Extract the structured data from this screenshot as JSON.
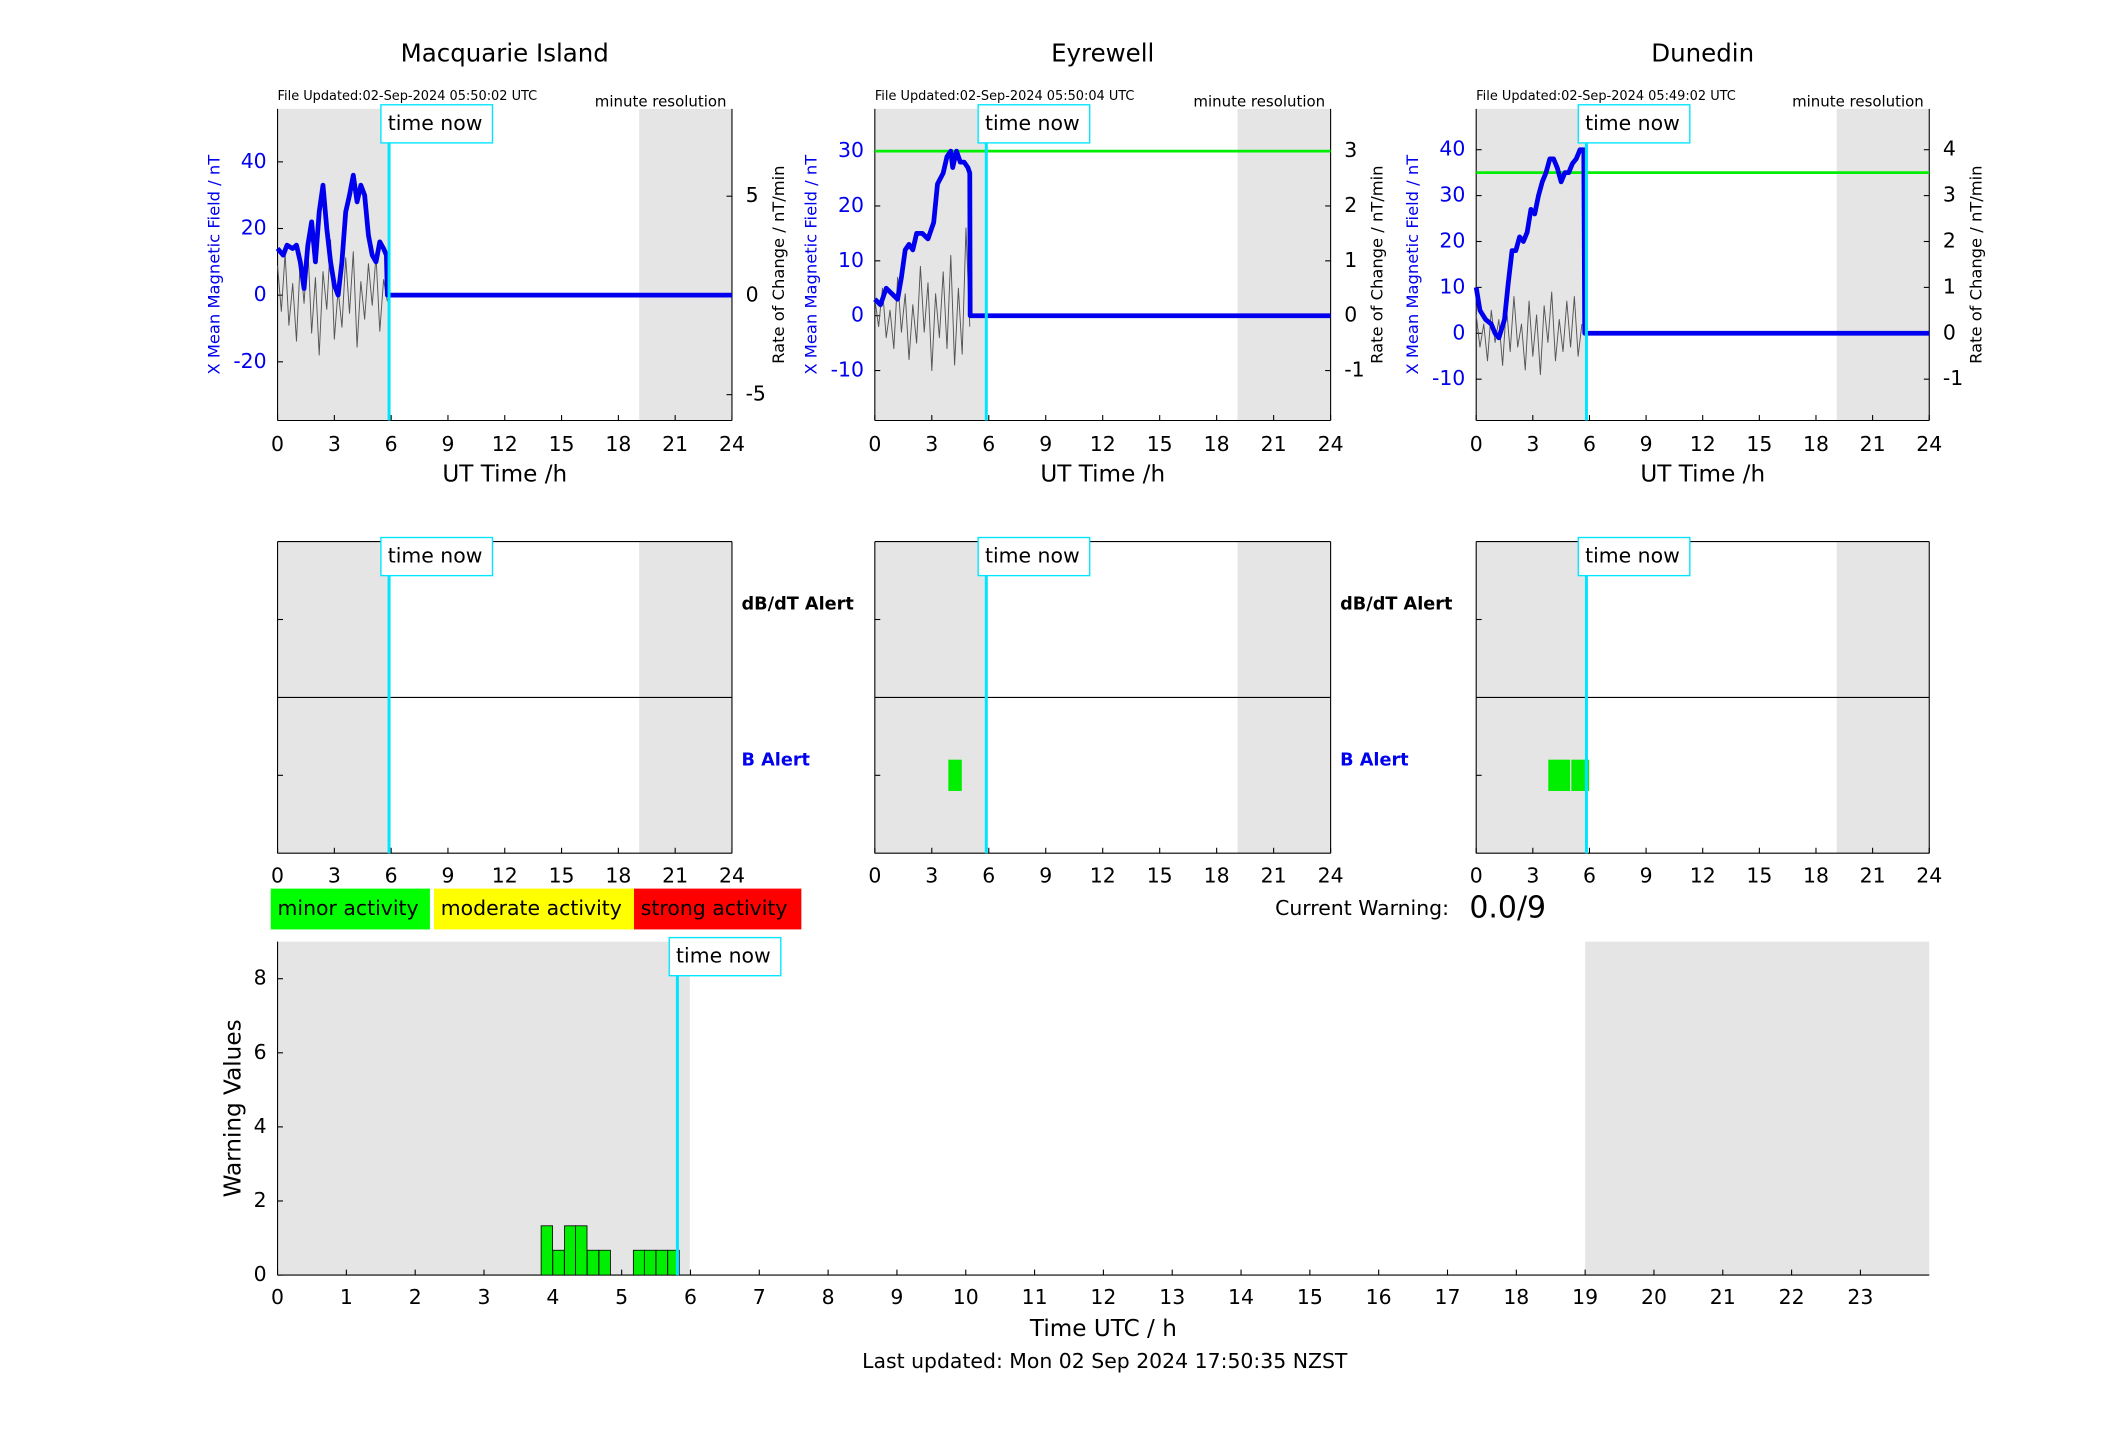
{
  "chart_data": [
    {
      "type": "line",
      "title": "Macquarie Island",
      "file_updated": "File Updated:02-Sep-2024 05:50:02 UTC",
      "resolution": "minute resolution",
      "xlabel": "UT Time /h",
      "ylabel": "X Mean Magnetic Field / nT",
      "y2label": "Rate of Change / nT/min",
      "xlim": [
        0,
        24
      ],
      "xticks": [
        0,
        3,
        6,
        9,
        12,
        15,
        18,
        21,
        24
      ],
      "ylim": [
        -37.6,
        55.9
      ],
      "yticks": [
        -20,
        0,
        20,
        40
      ],
      "y2lim": [
        -6.3,
        9.4
      ],
      "y2ticks": [
        -5,
        0,
        5
      ],
      "night": [
        [
          0,
          5.89
        ],
        [
          19.1,
          24
        ]
      ],
      "time_now": 5.89,
      "time_now_label": "time now",
      "series": [
        {
          "color": "#0000ee",
          "x": [
            0,
            0.3,
            0.5,
            0.8,
            1.0,
            1.2,
            1.4,
            1.6,
            1.8,
            2.0,
            2.2,
            2.4,
            2.6,
            2.8,
            3.0,
            3.2,
            3.4,
            3.6,
            3.8,
            4.0,
            4.2,
            4.4,
            4.6,
            4.8,
            5.0,
            5.2,
            5.4,
            5.6,
            5.75,
            5.8,
            24
          ],
          "values": [
            14,
            12,
            15,
            14,
            15,
            10,
            2,
            15,
            22,
            10,
            25,
            33,
            20,
            10,
            3,
            0,
            10,
            25,
            30,
            36,
            28,
            33,
            30,
            18,
            12,
            10,
            16,
            14,
            12,
            0,
            0
          ]
        },
        {
          "color": "#555555",
          "axis": "y2",
          "x": [
            0,
            0.2,
            0.4,
            0.6,
            0.8,
            1.0,
            1.2,
            1.4,
            1.6,
            1.8,
            2.0,
            2.2,
            2.4,
            2.6,
            2.8,
            3.0,
            3.2,
            3.4,
            3.6,
            3.8,
            4.0,
            4.2,
            4.4,
            4.6,
            4.8,
            5.0,
            5.2,
            5.4,
            5.6,
            5.8
          ],
          "values": [
            1.5,
            -0.8,
            2.1,
            -1.5,
            0.6,
            -2.3,
            1.8,
            -0.4,
            2.5,
            -1.9,
            0.9,
            -3.0,
            1.2,
            -0.7,
            2.8,
            -2.2,
            0.3,
            -1.6,
            1.9,
            -0.9,
            2.2,
            -2.6,
            0.7,
            -1.2,
            1.6,
            -0.5,
            2.0,
            -1.8,
            0.8,
            -0.3
          ]
        }
      ]
    },
    {
      "type": "line",
      "title": "Eyrewell",
      "file_updated": "File Updated:02-Sep-2024 05:50:04 UTC",
      "resolution": "minute resolution",
      "xlabel": "UT Time /h",
      "ylabel": "X Mean Magnetic Field / nT",
      "y2label": "Rate of Change / nT/min",
      "xlim": [
        0,
        24
      ],
      "xticks": [
        0,
        3,
        6,
        9,
        12,
        15,
        18,
        21,
        24
      ],
      "ylim": [
        -19.1,
        37.7
      ],
      "yticks": [
        -10,
        0,
        10,
        20,
        30
      ],
      "y2lim": [
        -1.91,
        3.77
      ],
      "y2ticks": [
        -1,
        0,
        1,
        2,
        3
      ],
      "threshold": 30,
      "threshold_color": "#00ee00",
      "night": [
        [
          0,
          5.87
        ],
        [
          19.1,
          24
        ]
      ],
      "time_now": 5.87,
      "time_now_label": "time now",
      "series": [
        {
          "color": "#0000ee",
          "x": [
            0,
            0.3,
            0.6,
            0.9,
            1.2,
            1.4,
            1.6,
            1.8,
            2.0,
            2.2,
            2.5,
            2.8,
            3.1,
            3.3,
            3.6,
            3.8,
            4.0,
            4.1,
            4.3,
            4.5,
            4.7,
            4.9,
            5.0,
            5.02,
            24
          ],
          "values": [
            3,
            2,
            5,
            4,
            3,
            7,
            12,
            13,
            12,
            15,
            15,
            14,
            17,
            24,
            26,
            29,
            30,
            27,
            30,
            28,
            28,
            27,
            26,
            0,
            0
          ]
        },
        {
          "color": "#555555",
          "axis": "y2",
          "x": [
            0,
            0.2,
            0.4,
            0.6,
            0.8,
            1.0,
            1.2,
            1.4,
            1.6,
            1.8,
            2.0,
            2.2,
            2.4,
            2.6,
            2.8,
            3.0,
            3.2,
            3.4,
            3.6,
            3.8,
            4.0,
            4.2,
            4.4,
            4.6,
            4.8,
            5.0
          ],
          "values": [
            0.3,
            -0.2,
            0.5,
            -0.4,
            0.1,
            -0.6,
            0.7,
            -0.3,
            0.4,
            -0.8,
            0.2,
            -0.5,
            0.9,
            -0.3,
            0.6,
            -1.0,
            0.4,
            -0.4,
            0.8,
            -0.6,
            1.1,
            -0.9,
            0.5,
            -0.7,
            1.6,
            -0.2
          ]
        }
      ]
    },
    {
      "type": "line",
      "title": "Dunedin",
      "file_updated": "File Updated:02-Sep-2024 05:49:02 UTC",
      "resolution": "minute resolution",
      "xlabel": "UT Time /h",
      "ylabel": "X Mean Magnetic Field / nT",
      "y2label": "Rate of Change / nT/min",
      "xlim": [
        0,
        24
      ],
      "xticks": [
        0,
        3,
        6,
        9,
        12,
        15,
        18,
        21,
        24
      ],
      "ylim": [
        -19.0,
        48.9
      ],
      "yticks": [
        -10,
        0,
        10,
        20,
        30,
        40
      ],
      "y2lim": [
        -1.9,
        4.89
      ],
      "y2ticks": [
        -1,
        0,
        1,
        2,
        3,
        4
      ],
      "threshold": 35,
      "threshold_color": "#00ee00",
      "night": [
        [
          0,
          5.84
        ],
        [
          19.1,
          24
        ]
      ],
      "time_now": 5.84,
      "time_now_label": "time now",
      "series": [
        {
          "color": "#0000ee",
          "x": [
            0,
            0.2,
            0.5,
            0.8,
            1.0,
            1.2,
            1.5,
            1.7,
            1.9,
            2.1,
            2.3,
            2.5,
            2.7,
            2.9,
            3.1,
            3.3,
            3.5,
            3.7,
            3.9,
            4.1,
            4.3,
            4.5,
            4.7,
            4.9,
            5.1,
            5.3,
            5.5,
            5.7,
            5.75,
            24
          ],
          "values": [
            10,
            5,
            3,
            2,
            0,
            -1,
            3,
            11,
            18,
            18,
            21,
            20,
            22,
            27,
            26,
            30,
            33,
            35,
            38,
            38,
            36,
            33,
            35,
            35,
            37,
            38,
            40,
            40,
            0,
            0
          ]
        },
        {
          "color": "#555555",
          "axis": "y2",
          "x": [
            0,
            0.2,
            0.4,
            0.6,
            0.8,
            1.0,
            1.2,
            1.4,
            1.6,
            1.8,
            2.0,
            2.2,
            2.4,
            2.6,
            2.8,
            3.0,
            3.2,
            3.4,
            3.6,
            3.8,
            4.0,
            4.2,
            4.4,
            4.6,
            4.8,
            5.0,
            5.2,
            5.4,
            5.6
          ],
          "values": [
            0.4,
            -0.3,
            0.2,
            -0.6,
            0.5,
            -0.2,
            0.3,
            -0.7,
            0.6,
            -0.4,
            0.8,
            -0.3,
            0.2,
            -0.8,
            0.7,
            -0.5,
            0.4,
            -0.9,
            0.6,
            -0.2,
            0.9,
            -0.6,
            0.3,
            -0.4,
            0.7,
            -0.3,
            0.8,
            -0.5,
            0.2
          ]
        }
      ]
    },
    {
      "type": "alert",
      "xlim": [
        0,
        24
      ],
      "xticks": [
        0,
        3,
        6,
        9,
        12,
        15,
        18,
        21,
        24
      ],
      "night": [
        [
          0,
          5.89
        ],
        [
          19.1,
          24
        ]
      ],
      "time_now": 5.89,
      "time_now_label": "time now",
      "upper_label": "dB/dT Alert",
      "lower_label": "B Alert",
      "color": "#00ee00",
      "events": []
    },
    {
      "type": "alert",
      "xlim": [
        0,
        24
      ],
      "xticks": [
        0,
        3,
        6,
        9,
        12,
        15,
        18,
        21,
        24
      ],
      "night": [
        [
          0,
          5.87
        ],
        [
          19.1,
          24
        ]
      ],
      "time_now": 5.87,
      "time_now_label": "time now",
      "upper_label": "dB/dT Alert",
      "lower_label": "B Alert",
      "color": "#00ee00",
      "events": [
        {
          "start": 3.87,
          "end": 4.58,
          "level": "B"
        }
      ]
    },
    {
      "type": "alert",
      "xlim": [
        0,
        24
      ],
      "xticks": [
        0,
        3,
        6,
        9,
        12,
        15,
        18,
        21,
        24
      ],
      "night": [
        [
          0,
          5.84
        ],
        [
          19.1,
          24
        ]
      ],
      "time_now": 5.84,
      "time_now_label": "time now",
      "color": "#00ee00",
      "events": [
        {
          "start": 3.82,
          "end": 4.97,
          "level": "B"
        },
        {
          "start": 5.04,
          "end": 5.98,
          "level": "B"
        }
      ]
    },
    {
      "type": "bar",
      "xlabel": "Time UTC / h",
      "ylabel": "Warning Values",
      "xlim": [
        0,
        24
      ],
      "xticks": [
        0,
        1,
        2,
        3,
        4,
        5,
        6,
        7,
        8,
        9,
        10,
        11,
        12,
        13,
        14,
        15,
        16,
        17,
        18,
        19,
        20,
        21,
        22,
        23
      ],
      "ylim": [
        0,
        9
      ],
      "yticks": [
        0,
        2,
        4,
        6,
        8
      ],
      "night": [
        [
          0,
          5.99
        ],
        [
          19,
          24
        ]
      ],
      "time_now": 5.81,
      "time_now_label": "time now",
      "x": [
        3.83,
        4.0,
        4.17,
        4.33,
        4.5,
        4.67,
        5.17,
        5.33,
        5.5,
        5.67
      ],
      "values": [
        1.33,
        0.67,
        1.33,
        1.33,
        0.67,
        0.67,
        0.67,
        0.67,
        0.67,
        0.67
      ],
      "bar_width": 0.1667,
      "color": "#00ee00"
    }
  ],
  "legend": {
    "items": [
      {
        "label": "minor activity",
        "color": "#00ff00"
      },
      {
        "label": "moderate activity",
        "color": "#ffff00"
      },
      {
        "label": "strong activity",
        "color": "#ff0000"
      }
    ]
  },
  "current_warning": {
    "label": "Current Warning:",
    "value": "0.0/9"
  },
  "footer": "Last updated: Mon 02 Sep 2024 17:50:35 NZST"
}
